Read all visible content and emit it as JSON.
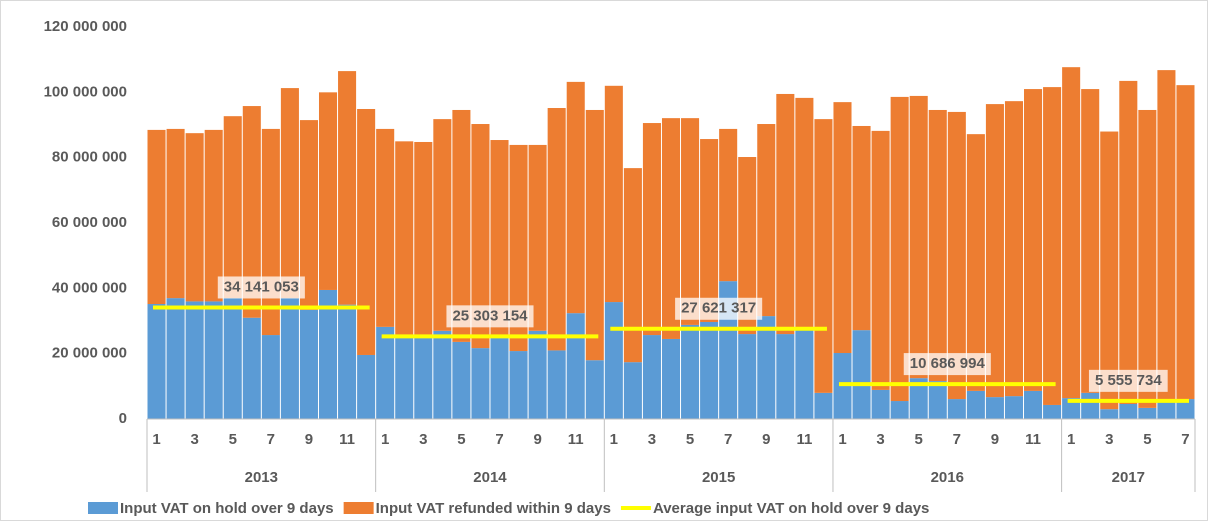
{
  "chart_data": {
    "type": "stacked_bar",
    "categories": [
      "1",
      null,
      "3",
      null,
      "5",
      null,
      "7",
      null,
      "9",
      null,
      "11",
      null,
      "1",
      null,
      "3",
      null,
      "5",
      null,
      "7",
      null,
      "9",
      null,
      "11",
      null,
      "1",
      null,
      "3",
      null,
      "5",
      null,
      "7",
      null,
      "9",
      null,
      "11",
      null,
      "1",
      null,
      "3",
      null,
      "5",
      null,
      "7",
      null,
      "9",
      null,
      "11",
      null,
      "1",
      null,
      "3",
      null,
      "5",
      null,
      "7"
    ],
    "groups": [
      "2013",
      "2014",
      "2015",
      "2016",
      "2017"
    ],
    "series": [
      {
        "name": "Input VAT on hold over 9 days",
        "color": "#5b9bd5",
        "values": [
          35200000,
          37000000,
          36000000,
          36000000,
          37000000,
          31000000,
          25700000,
          37000000,
          33400000,
          39500000,
          35000000,
          19600000,
          28200000,
          25700000,
          25400000,
          27000000,
          23600000,
          21700000,
          25400000,
          20800000,
          27000000,
          21000000,
          32400000,
          18000000,
          35800000,
          17400000,
          25700000,
          24500000,
          28800000,
          29700000,
          42200000,
          26000000,
          31500000,
          26000000,
          27200000,
          8000000,
          20200000,
          27200000,
          8900000,
          5500000,
          12500000,
          11600000,
          6100000,
          8600000,
          6700000,
          7000000,
          8600000,
          4300000,
          6400000,
          8000000,
          3000000,
          4600000,
          3400000,
          5200000,
          6100000
        ]
      },
      {
        "name": "Input VAT refunded within 9 days",
        "color": "#ed7d31",
        "values": [
          53300000,
          51800000,
          51500000,
          52500000,
          55700000,
          64800000,
          63100000,
          64300000,
          58100000,
          60500000,
          71500000,
          75300000,
          60600000,
          59300000,
          59400000,
          64800000,
          71000000,
          68600000,
          60000000,
          63100000,
          56900000,
          74200000,
          70800000,
          76600000,
          66200000,
          59400000,
          64900000,
          67600000,
          63300000,
          56000000,
          46600000,
          54200000,
          58800000,
          73500000,
          71100000,
          83800000,
          76800000,
          62500000,
          79300000,
          93100000,
          86400000,
          83000000,
          87900000,
          78600000,
          89700000,
          90300000,
          92400000,
          97300000,
          101300000,
          93000000,
          85000000,
          98900000,
          91200000,
          101600000,
          96100000
        ]
      }
    ],
    "average": {
      "name": "Average input VAT on hold over 9 days",
      "color": "#ffff00",
      "values": [
        34141053,
        25303154,
        27621317,
        10686994,
        5555734
      ],
      "value_labels": [
        "34 141 053",
        "25 303 154",
        "27 621 317",
        "10 686 994",
        "5 555 734"
      ]
    },
    "ylim": [
      0,
      120000000
    ],
    "yticks": [
      0,
      {
        "value": 20000000,
        "label": "20 000 000"
      },
      {
        "value": 40000000,
        "label": "40 000 000"
      },
      {
        "value": 60000000,
        "label": "60 000 000"
      },
      {
        "value": 80000000,
        "label": "80 000 000"
      },
      {
        "value": 100000000,
        "label": "100 000 000"
      },
      {
        "value": 120000000,
        "label": "120 000 000"
      }
    ],
    "grid": false
  }
}
